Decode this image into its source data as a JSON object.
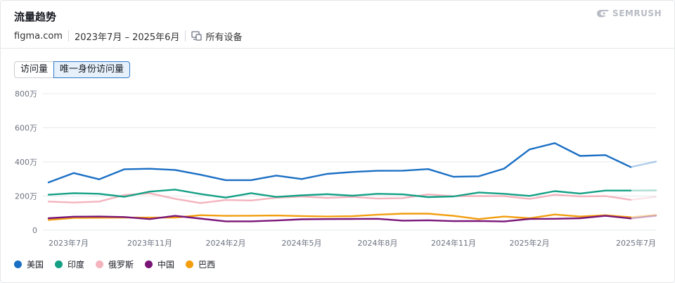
{
  "header": {
    "title": "流量趋势",
    "logo_text": "SEMRUSH",
    "domain": "figma.com",
    "date_range": "2023年7月 – 2025年6月",
    "device_label": "所有设备",
    "device_icon": "devices-icon"
  },
  "tabs": [
    {
      "label": "访问量",
      "active": false
    },
    {
      "label": "唯一身份访问量",
      "active": true
    }
  ],
  "chart_data": {
    "type": "line",
    "x": [
      "2023年7月",
      "2023年8月",
      "2023年9月",
      "2023年10月",
      "2023年11月",
      "2023年12月",
      "2024年1月",
      "2024年2月",
      "2024年3月",
      "2024年4月",
      "2024年5月",
      "2024年6月",
      "2024年7月",
      "2024年8月",
      "2024年9月",
      "2024年10月",
      "2024年11月",
      "2024年12月",
      "2025年1月",
      "2025年2月",
      "2025年3月",
      "2025年4月",
      "2025年5月",
      "2025年6月",
      "2025年7月"
    ],
    "x_tick_labels": [
      "2023年7月",
      "2023年11月",
      "2024年2月",
      "2024年5月",
      "2024年8月",
      "2024年11月",
      "2025年2月",
      "2025年7月"
    ],
    "x_tick_index": [
      0,
      4,
      7,
      10,
      13,
      16,
      19,
      24
    ],
    "y_tick_labels": [
      "0",
      "200万",
      "400万",
      "600万",
      "800万"
    ],
    "ylim": [
      0,
      8000000
    ],
    "grid": true,
    "projected_last_point": true,
    "series": [
      {
        "name": "美国",
        "color": "#1a6fc4",
        "values": [
          2800000,
          3350000,
          2980000,
          3570000,
          3600000,
          3530000,
          3250000,
          2930000,
          2930000,
          3200000,
          3000000,
          3300000,
          3410000,
          3480000,
          3490000,
          3580000,
          3130000,
          3160000,
          3610000,
          4730000,
          5100000,
          4350000,
          4400000,
          3700000,
          4020000
        ]
      },
      {
        "name": "印度",
        "color": "#14a085",
        "values": [
          2080000,
          2170000,
          2130000,
          1960000,
          2260000,
          2380000,
          2120000,
          1910000,
          2170000,
          1950000,
          2040000,
          2110000,
          2020000,
          2130000,
          2100000,
          1940000,
          1980000,
          2210000,
          2130000,
          2010000,
          2290000,
          2150000,
          2320000,
          2320000,
          2330000
        ]
      },
      {
        "name": "俄罗斯",
        "color": "#f4b3bd",
        "values": [
          1680000,
          1620000,
          1680000,
          2060000,
          2160000,
          1840000,
          1590000,
          1770000,
          1740000,
          1900000,
          1970000,
          1890000,
          1950000,
          1850000,
          1880000,
          2100000,
          1990000,
          2000000,
          2000000,
          1830000,
          2080000,
          1980000,
          2000000,
          1780000,
          1950000
        ]
      },
      {
        "name": "中国",
        "color": "#7a1578",
        "values": [
          700000,
          790000,
          800000,
          770000,
          650000,
          840000,
          680000,
          520000,
          520000,
          570000,
          640000,
          650000,
          660000,
          670000,
          560000,
          580000,
          530000,
          540000,
          510000,
          660000,
          670000,
          700000,
          840000,
          690000,
          850000
        ]
      },
      {
        "name": "巴西",
        "color": "#f29e0f",
        "values": [
          600000,
          720000,
          730000,
          740000,
          740000,
          740000,
          880000,
          840000,
          850000,
          860000,
          830000,
          800000,
          820000,
          910000,
          970000,
          970000,
          840000,
          650000,
          800000,
          700000,
          920000,
          800000,
          880000,
          760000,
          900000
        ]
      }
    ]
  }
}
